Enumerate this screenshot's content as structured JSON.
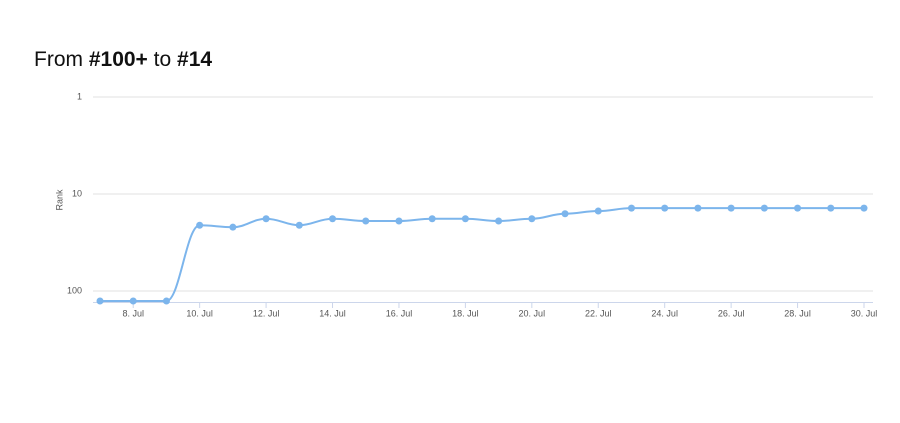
{
  "header": {
    "prefix": "From",
    "from": "#100+",
    "middle": "to",
    "to": "#14"
  },
  "chart_data": {
    "type": "line",
    "y_label": "Rank",
    "categories": [
      null,
      "8. Jul",
      null,
      "10. Jul",
      null,
      "12. Jul",
      null,
      "14. Jul",
      null,
      "16. Jul",
      null,
      "18. Jul",
      null,
      "20. Jul",
      null,
      "22. Jul",
      null,
      "24. Jul",
      null,
      "26. Jul",
      null,
      "28. Jul",
      null,
      "30. Jul"
    ],
    "values": [
      127,
      127,
      127,
      21,
      22,
      18,
      21,
      18,
      19,
      19,
      18,
      18,
      19,
      18,
      16,
      15,
      14,
      14,
      14,
      14,
      14,
      14,
      14,
      14
    ],
    "color": "#7cb5ec",
    "log_scale": true,
    "reversed": true,
    "grid": true,
    "ylim": [
      1,
      130
    ],
    "yticks": [
      1,
      10,
      100
    ]
  }
}
